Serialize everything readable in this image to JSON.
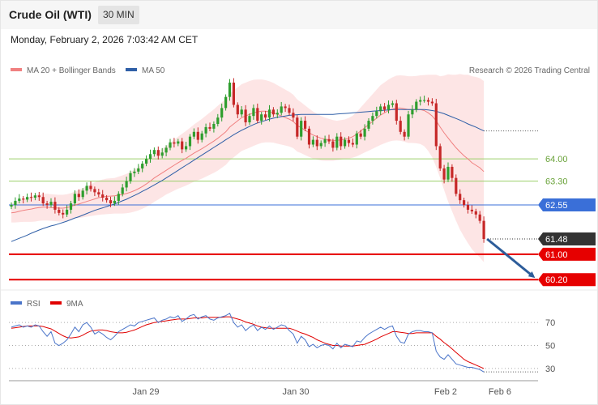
{
  "header": {
    "instrument": "Crude Oil (WTI)",
    "timeframe": "30 MIN",
    "timestamp": "Monday, February 2, 2026 7:03:42 AM CET"
  },
  "legend": {
    "items": [
      {
        "label": "MA 20 + Bollinger Bands",
        "color": "#f08080"
      },
      {
        "label": "MA 50",
        "color": "#2f5fa7"
      }
    ],
    "credit": "Research © 2026 Trading Central"
  },
  "rsi_legend": {
    "items": [
      {
        "label": "RSI",
        "color": "#4a74c9"
      },
      {
        "label": "9MA",
        "color": "#e00000"
      }
    ]
  },
  "x_axis": {
    "labels": [
      "Jan 29",
      "Jan 30",
      "Feb 2",
      "Feb 6"
    ]
  },
  "colors": {
    "up": "#2e9e2e",
    "down": "#c62828",
    "band": "#fde0e0",
    "resistance": "#9bcf6a",
    "pivot": "#3a6fd8",
    "support": "#e60000",
    "current": "#333333",
    "arrow": "#2d5d9a"
  },
  "chart_data": [
    {
      "type": "candlestick",
      "title": "Crude Oil (WTI)",
      "ylim": [
        59.9,
        66.4
      ],
      "levels": [
        {
          "value": 64.0,
          "label": "64.00",
          "kind": "resistance"
        },
        {
          "value": 63.3,
          "label": "63.30",
          "kind": "resistance"
        },
        {
          "value": 62.55,
          "label": "62.55",
          "kind": "pivot"
        },
        {
          "value": 61.48,
          "label": "61.48",
          "kind": "current"
        },
        {
          "value": 61.0,
          "label": "61.00",
          "kind": "support"
        },
        {
          "value": 60.2,
          "label": "60.20",
          "kind": "support"
        }
      ],
      "close": [
        62.55,
        62.68,
        62.75,
        62.72,
        62.8,
        62.78,
        62.85,
        62.8,
        62.6,
        62.55,
        62.65,
        62.4,
        62.3,
        62.25,
        62.4,
        62.6,
        62.9,
        62.8,
        63.0,
        63.15,
        63.05,
        62.95,
        62.88,
        62.78,
        62.7,
        62.6,
        62.68,
        62.9,
        63.1,
        63.3,
        63.55,
        63.6,
        63.7,
        63.85,
        64.0,
        64.15,
        64.28,
        64.1,
        64.2,
        64.35,
        64.52,
        64.48,
        64.55,
        64.3,
        64.4,
        64.7,
        64.85,
        64.6,
        64.8,
        65.0,
        64.95,
        65.1,
        65.3,
        65.6,
        65.95,
        66.4,
        65.7,
        65.4,
        65.55,
        65.15,
        65.35,
        65.6,
        65.2,
        65.4,
        65.3,
        65.55,
        65.4,
        65.45,
        65.65,
        65.6,
        65.45,
        65.3,
        64.7,
        65.2,
        64.95,
        64.45,
        64.6,
        64.4,
        64.5,
        64.62,
        64.55,
        64.35,
        64.7,
        64.4,
        64.6,
        64.5,
        64.45,
        64.8,
        64.7,
        64.95,
        65.2,
        65.35,
        65.5,
        65.65,
        65.55,
        65.7,
        65.75,
        65.2,
        64.85,
        64.7,
        65.4,
        65.55,
        65.8,
        65.85,
        65.85,
        65.8,
        65.75,
        64.4,
        63.7,
        63.35,
        63.75,
        63.4,
        62.9,
        62.7,
        62.55,
        62.4,
        62.35,
        62.25,
        62.05,
        61.48
      ],
      "ma20": [
        62.3,
        62.32,
        62.35,
        62.38,
        62.4,
        62.42,
        62.45,
        62.47,
        62.48,
        62.48,
        62.47,
        62.46,
        62.45,
        62.45,
        62.47,
        62.5,
        62.55,
        62.58,
        62.62,
        62.66,
        62.7,
        62.74,
        62.78,
        62.8,
        62.82,
        62.83,
        62.84,
        62.86,
        62.88,
        62.91,
        62.95,
        63.0,
        63.06,
        63.13,
        63.21,
        63.3,
        63.4,
        63.48,
        63.56,
        63.64,
        63.72,
        63.8,
        63.88,
        63.95,
        64.02,
        64.1,
        64.18,
        64.25,
        64.32,
        64.4,
        64.48,
        64.56,
        64.65,
        64.75,
        64.85,
        65.0,
        65.1,
        65.2,
        65.3,
        65.35,
        65.4,
        65.45,
        65.48,
        65.5,
        65.5,
        65.48,
        65.45,
        65.4,
        65.35,
        65.3,
        65.25,
        65.18,
        65.05,
        64.98,
        64.9,
        64.82,
        64.75,
        64.7,
        64.65,
        64.62,
        64.6,
        64.58,
        64.58,
        64.6,
        64.62,
        64.65,
        64.7,
        64.78,
        64.88,
        64.98,
        65.08,
        65.18,
        65.28,
        65.38,
        65.45,
        65.52,
        65.57,
        65.6,
        65.6,
        65.58,
        65.55,
        65.55,
        65.55,
        65.55,
        65.52,
        65.45,
        65.35,
        65.2,
        65.0,
        64.82,
        64.66,
        64.5,
        64.35,
        64.22,
        64.1,
        64.0,
        63.88,
        63.8,
        63.72,
        63.6
      ],
      "bb_width": [
        0.3,
        0.32,
        0.34,
        0.36,
        0.38,
        0.4,
        0.42,
        0.42,
        0.42,
        0.42,
        0.42,
        0.42,
        0.42,
        0.42,
        0.42,
        0.42,
        0.42,
        0.44,
        0.46,
        0.48,
        0.5,
        0.52,
        0.54,
        0.55,
        0.56,
        0.56,
        0.56,
        0.58,
        0.6,
        0.62,
        0.64,
        0.66,
        0.68,
        0.7,
        0.72,
        0.74,
        0.75,
        0.76,
        0.76,
        0.76,
        0.78,
        0.8,
        0.82,
        0.84,
        0.86,
        0.88,
        0.9,
        0.92,
        0.94,
        0.96,
        0.98,
        1.0,
        1.02,
        1.03,
        1.04,
        1.05,
        1.05,
        1.05,
        1.05,
        1.05,
        1.05,
        1.04,
        1.02,
        1.0,
        0.98,
        0.96,
        0.94,
        0.92,
        0.9,
        0.88,
        0.86,
        0.84,
        0.82,
        0.8,
        0.78,
        0.76,
        0.74,
        0.72,
        0.7,
        0.68,
        0.66,
        0.64,
        0.62,
        0.62,
        0.62,
        0.64,
        0.66,
        0.7,
        0.74,
        0.78,
        0.82,
        0.86,
        0.9,
        0.94,
        0.96,
        0.98,
        1.0,
        1.02,
        1.03,
        1.04,
        1.05,
        1.05,
        1.06,
        1.08,
        1.12,
        1.2,
        1.3,
        1.45,
        1.6,
        1.8,
        2.0,
        2.15,
        2.3,
        2.45,
        2.55,
        2.65,
        2.72,
        2.78,
        2.82,
        2.85
      ],
      "ma50": [
        61.4,
        61.45,
        61.5,
        61.55,
        61.6,
        61.66,
        61.71,
        61.76,
        61.81,
        61.85,
        61.89,
        61.92,
        61.96,
        62.0,
        62.04,
        62.09,
        62.14,
        62.18,
        62.23,
        62.28,
        62.33,
        62.38,
        62.42,
        62.46,
        62.5,
        62.54,
        62.58,
        62.63,
        62.68,
        62.73,
        62.79,
        62.85,
        62.91,
        62.98,
        63.04,
        63.11,
        63.18,
        63.25,
        63.32,
        63.4,
        63.48,
        63.56,
        63.64,
        63.72,
        63.8,
        63.88,
        63.96,
        64.04,
        64.12,
        64.2,
        64.28,
        64.36,
        64.44,
        64.52,
        64.6,
        64.68,
        64.76,
        64.83,
        64.9,
        64.96,
        65.02,
        65.08,
        65.13,
        65.17,
        65.21,
        65.25,
        65.28,
        65.31,
        65.33,
        65.35,
        65.37,
        65.38,
        65.39,
        65.4,
        65.4,
        65.4,
        65.4,
        65.4,
        65.4,
        65.4,
        65.4,
        65.4,
        65.41,
        65.42,
        65.43,
        65.44,
        65.45,
        65.46,
        65.47,
        65.48,
        65.49,
        65.5,
        65.51,
        65.52,
        65.53,
        65.54,
        65.55,
        65.55,
        65.55,
        65.55,
        65.55,
        65.55,
        65.55,
        65.55,
        65.55,
        65.54,
        65.52,
        65.5,
        65.46,
        65.42,
        65.37,
        65.32,
        65.27,
        65.22,
        65.16,
        65.1,
        65.05,
        65.0,
        64.94,
        64.88
      ],
      "projection": {
        "from": 61.48,
        "to": 60.2
      }
    },
    {
      "type": "line",
      "title": "RSI",
      "ylim": [
        25,
        80
      ],
      "yticks": [
        30,
        50,
        70
      ],
      "series": [
        {
          "name": "RSI",
          "values": [
            66,
            67,
            68,
            66,
            67,
            66,
            68,
            67,
            62,
            58,
            62,
            52,
            50,
            52,
            55,
            60,
            66,
            62,
            68,
            70,
            66,
            60,
            62,
            60,
            57,
            55,
            58,
            62,
            64,
            66,
            68,
            67,
            70,
            71,
            72,
            73,
            74,
            70,
            72,
            73,
            75,
            74,
            76,
            71,
            73,
            76,
            77,
            73,
            75,
            76,
            73,
            72,
            74,
            75,
            76,
            78,
            70,
            66,
            68,
            63,
            66,
            68,
            63,
            66,
            64,
            67,
            64,
            66,
            68,
            67,
            63,
            60,
            52,
            58,
            55,
            49,
            51,
            48,
            50,
            51,
            50,
            47,
            52,
            48,
            51,
            50,
            49,
            54,
            53,
            57,
            60,
            62,
            64,
            66,
            64,
            66,
            67,
            58,
            53,
            52,
            60,
            62,
            63,
            63,
            62,
            62,
            61,
            45,
            40,
            38,
            42,
            38,
            34,
            33,
            32,
            31,
            31,
            30,
            29,
            27
          ]
        },
        {
          "name": "9MA",
          "values": [
            65,
            65.5,
            66,
            66.5,
            67,
            67,
            67,
            67,
            66.5,
            65.5,
            64.5,
            62.5,
            60.5,
            58.5,
            57,
            56.5,
            57,
            57.5,
            59,
            61,
            62.5,
            63,
            63.5,
            63.5,
            63,
            62,
            61.5,
            61,
            61,
            61.5,
            62.5,
            63.5,
            65,
            66.5,
            68,
            69,
            70,
            70.5,
            71,
            71.5,
            72,
            72.5,
            73,
            73,
            73,
            73.5,
            74,
            74,
            74,
            74.5,
            74.5,
            74.5,
            74.5,
            74.5,
            75,
            75,
            74,
            73,
            72,
            70.5,
            69.5,
            68.5,
            67,
            66,
            65.5,
            65,
            65,
            65,
            65,
            65,
            65,
            64,
            62.5,
            61,
            60,
            58.5,
            57,
            55,
            53.5,
            52,
            51,
            50,
            50,
            49.5,
            49.5,
            49.5,
            49.5,
            50,
            50.5,
            51,
            52.5,
            54,
            55.5,
            57.5,
            59,
            60.5,
            62,
            62,
            61.5,
            61,
            60.5,
            60.5,
            61,
            61,
            61,
            61,
            61,
            58,
            55.5,
            52.5,
            50,
            47,
            44,
            41,
            38,
            36,
            34.5,
            33,
            31.5,
            30
          ]
        }
      ]
    }
  ]
}
